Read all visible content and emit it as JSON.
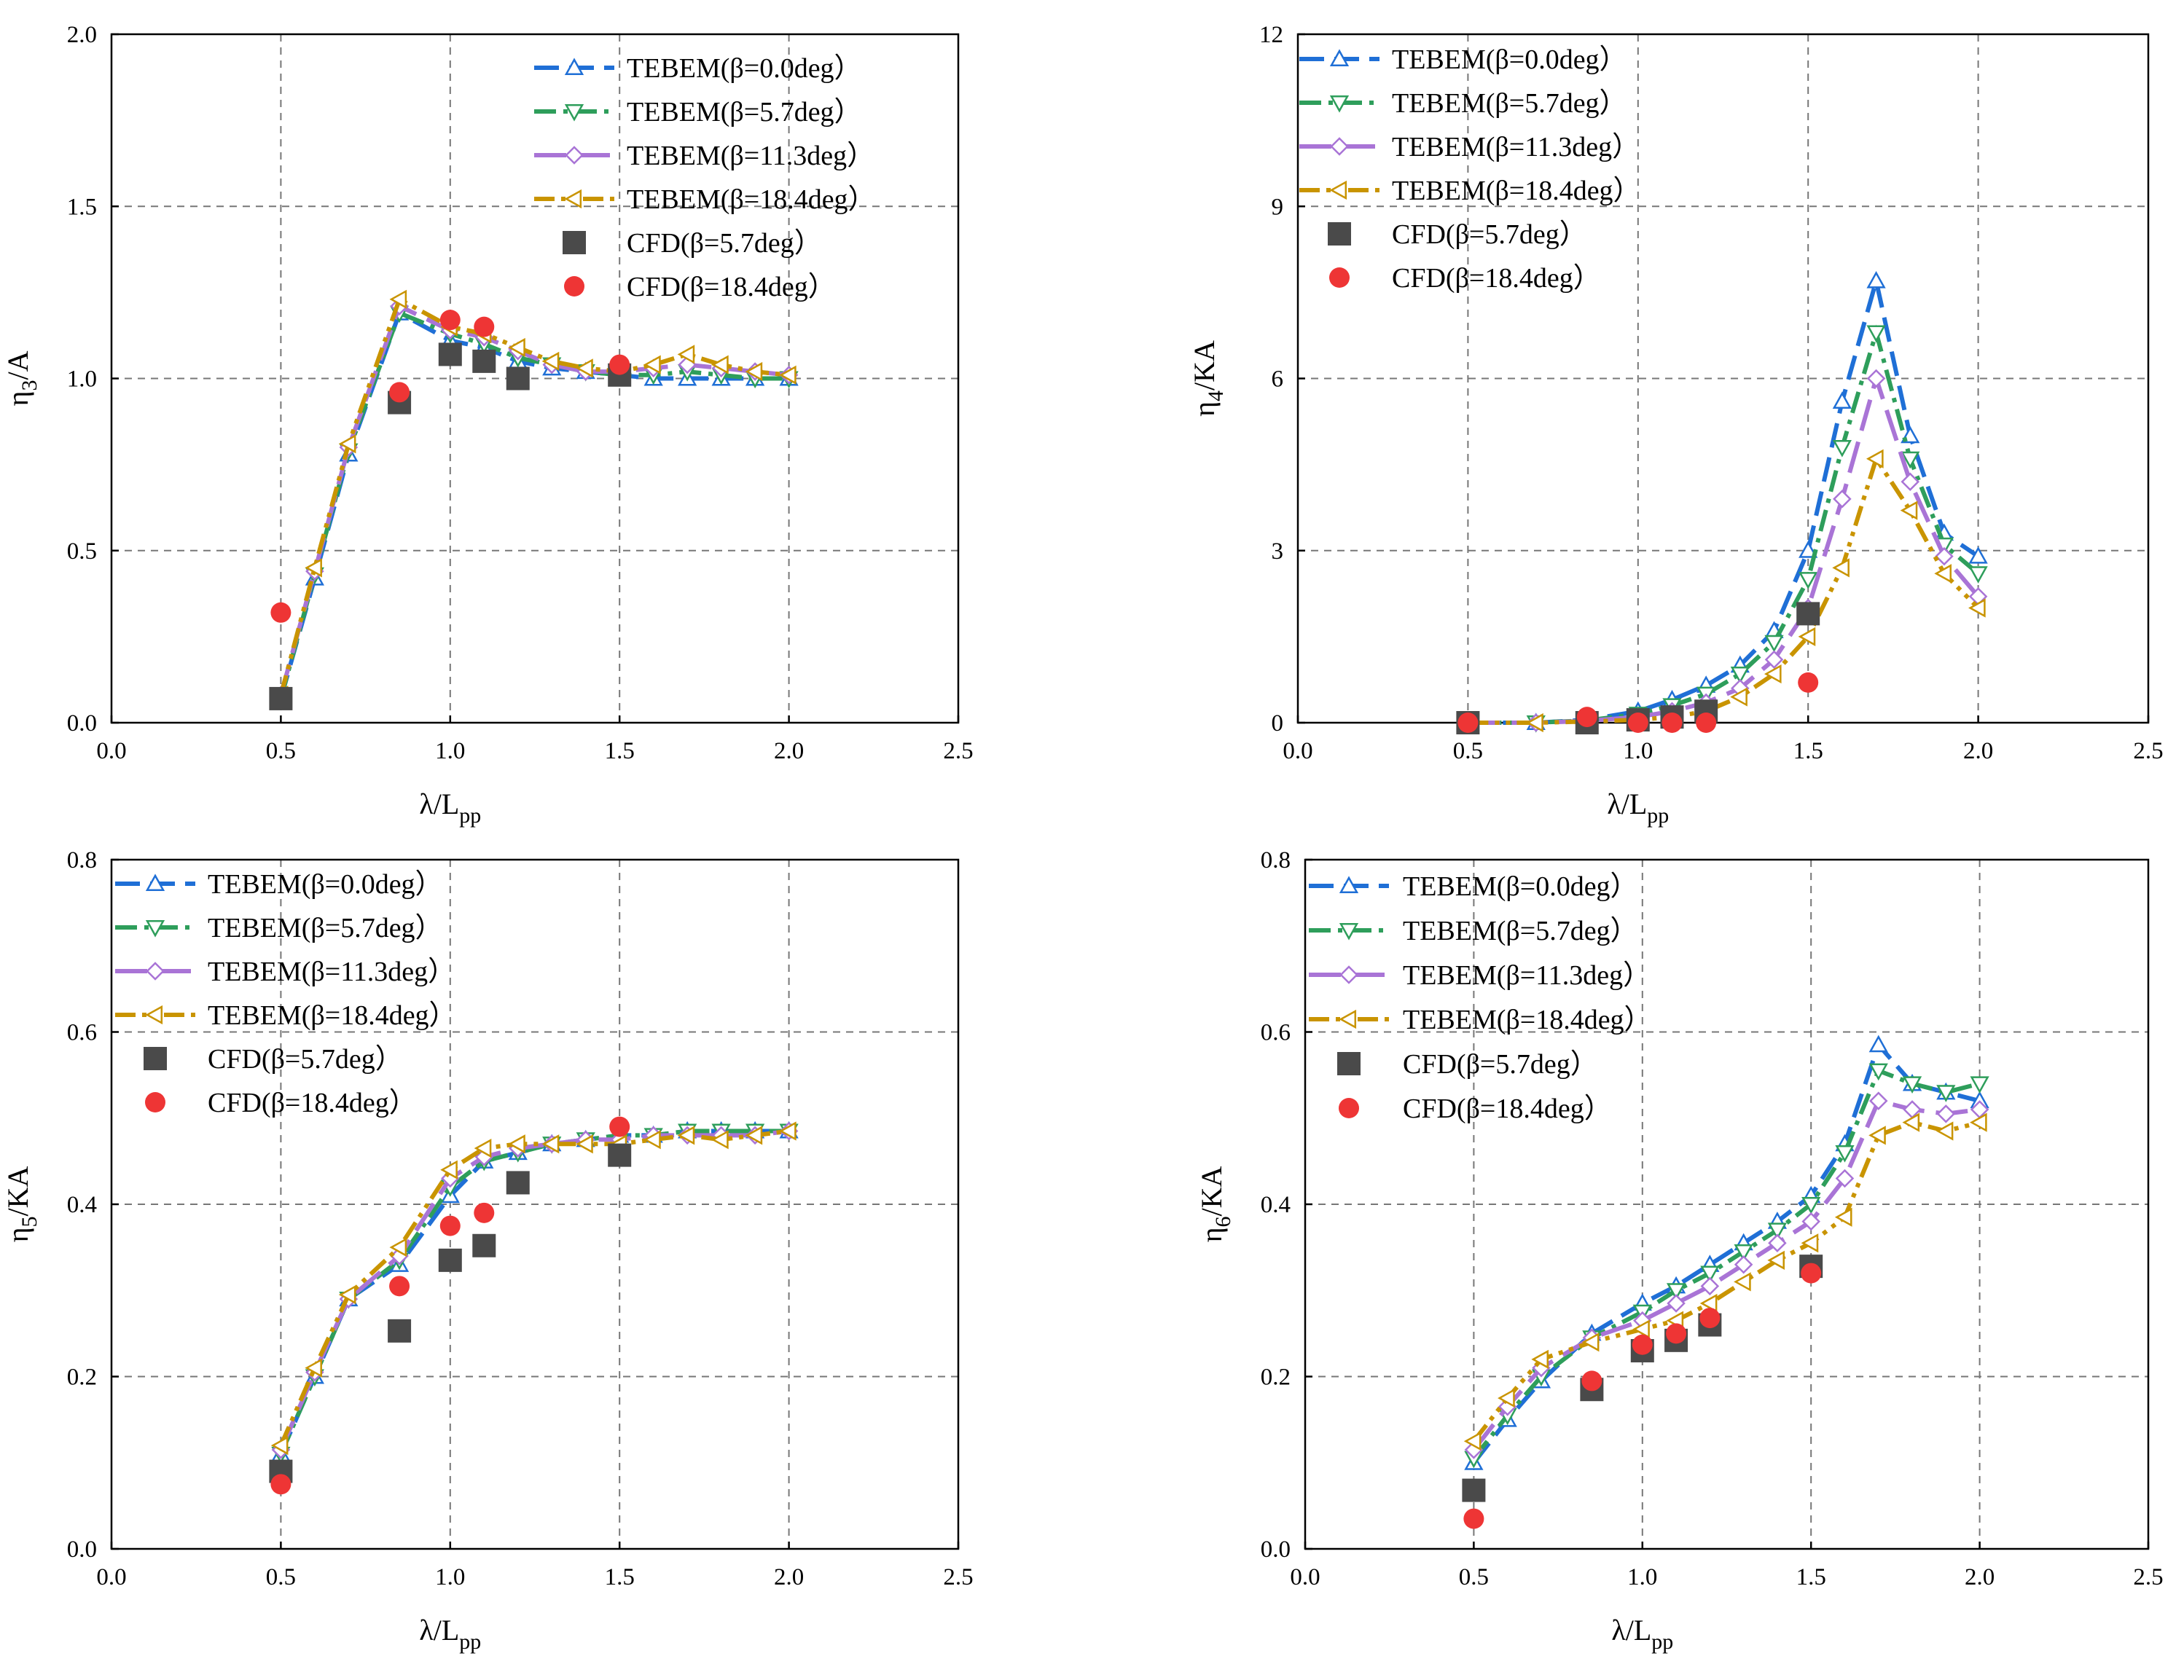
{
  "figure": {
    "legend_labels": [
      "TEBEM(β=0.0deg）",
      "TEBEM(β=5.7deg）",
      "TEBEM(β=11.3deg）",
      "TEBEM(β=18.4deg）",
      "CFD(β=5.7deg）",
      "CFD(β=18.4deg）"
    ]
  },
  "series_styles": [
    {
      "name": "TEBEM(β=0.0deg）",
      "color": "#1f6fd6",
      "marker": "triangle-up",
      "dash": "dash"
    },
    {
      "name": "TEBEM(β=5.7deg）",
      "color": "#2e9e5b",
      "marker": "triangle-down",
      "dash": "dashdot"
    },
    {
      "name": "TEBEM(β=11.3deg）",
      "color": "#a974d6",
      "marker": "diamond",
      "dash": "longdash"
    },
    {
      "name": "TEBEM(β=18.4deg）",
      "color": "#c99400",
      "marker": "triangle-left",
      "dash": "dashdotdot"
    },
    {
      "name": "CFD(β=5.7deg）",
      "color": "#4a4a4a",
      "marker": "square"
    },
    {
      "name": "CFD(β=18.4deg）",
      "color": "#ee3535",
      "marker": "circle"
    }
  ],
  "chart_data": [
    {
      "type": "line",
      "id": "heave",
      "ylabel_base": "η",
      "ylabel_sub": "3",
      "ylabel_rest": "/A",
      "xlabel_base": "λ/L",
      "xlabel_sub": "pp",
      "xlim": [
        0,
        2.5
      ],
      "ylim": [
        0,
        2.0
      ],
      "xticks": [
        0.0,
        0.5,
        1.0,
        1.5,
        2.0,
        2.5
      ],
      "xtick_labels": [
        "0.0",
        "0.5",
        "1.0",
        "1.5",
        "2.0",
        "2.5"
      ],
      "yticks": [
        0.0,
        0.5,
        1.0,
        1.5,
        2.0
      ],
      "ytick_labels": [
        "0.0",
        "0.5",
        "1.0",
        "1.5",
        "2.0"
      ],
      "grid": true,
      "legend_position": "top-right",
      "series": [
        {
          "name": "TEBEM(β=0.0deg）",
          "x": [
            0.5,
            0.6,
            0.7,
            0.85,
            1.0,
            1.1,
            1.2,
            1.3,
            1.4,
            1.5,
            1.6,
            1.7,
            1.8,
            1.9,
            2.0
          ],
          "y": [
            0.07,
            0.42,
            0.78,
            1.19,
            1.11,
            1.09,
            1.05,
            1.03,
            1.02,
            1.01,
            1.0,
            1.0,
            1.0,
            1.0,
            1.0
          ]
        },
        {
          "name": "TEBEM(β=5.7deg）",
          "x": [
            0.5,
            0.6,
            0.7,
            0.85,
            1.0,
            1.1,
            1.2,
            1.3,
            1.4,
            1.5,
            1.6,
            1.7,
            1.8,
            1.9,
            2.0
          ],
          "y": [
            0.07,
            0.43,
            0.79,
            1.19,
            1.13,
            1.1,
            1.06,
            1.04,
            1.02,
            1.01,
            1.01,
            1.02,
            1.01,
            1.0,
            1.0
          ]
        },
        {
          "name": "TEBEM(β=11.3deg）",
          "x": [
            0.5,
            0.6,
            0.7,
            0.85,
            1.0,
            1.1,
            1.2,
            1.3,
            1.4,
            1.5,
            1.6,
            1.7,
            1.8,
            1.9,
            2.0
          ],
          "y": [
            0.08,
            0.44,
            0.8,
            1.21,
            1.14,
            1.12,
            1.08,
            1.04,
            1.02,
            1.02,
            1.03,
            1.04,
            1.03,
            1.02,
            1.01
          ]
        },
        {
          "name": "TEBEM(β=18.4deg）",
          "x": [
            0.5,
            0.6,
            0.7,
            0.85,
            1.0,
            1.1,
            1.2,
            1.3,
            1.4,
            1.5,
            1.6,
            1.7,
            1.8,
            1.9,
            2.0
          ],
          "y": [
            0.08,
            0.45,
            0.81,
            1.23,
            1.15,
            1.13,
            1.09,
            1.05,
            1.03,
            1.02,
            1.04,
            1.07,
            1.04,
            1.02,
            1.01
          ]
        },
        {
          "name": "CFD(β=5.7deg）",
          "x": [
            0.5,
            0.85,
            1.0,
            1.1,
            1.2,
            1.5
          ],
          "y": [
            0.07,
            0.93,
            1.07,
            1.05,
            1.0,
            1.01
          ]
        },
        {
          "name": "CFD(β=18.4deg）",
          "x": [
            0.5,
            0.85,
            1.0,
            1.1,
            1.5
          ],
          "y": [
            0.32,
            0.96,
            1.17,
            1.15,
            1.04
          ]
        }
      ]
    },
    {
      "type": "line",
      "id": "roll",
      "ylabel_base": "η",
      "ylabel_sub": "4",
      "ylabel_rest": "/KA",
      "xlabel_base": "λ/L",
      "xlabel_sub": "pp",
      "xlim": [
        0,
        2.5
      ],
      "ylim": [
        0,
        12
      ],
      "xticks": [
        0.0,
        0.5,
        1.0,
        1.5,
        2.0,
        2.5
      ],
      "xtick_labels": [
        "0.0",
        "0.5",
        "1.0",
        "1.5",
        "2.0",
        "2.5"
      ],
      "yticks": [
        0,
        3,
        6,
        9,
        12
      ],
      "ytick_labels": [
        "0",
        "3",
        "6",
        "9",
        "12"
      ],
      "grid": true,
      "legend_position": "top-left",
      "series": [
        {
          "name": "TEBEM(β=0.0deg）",
          "x": [
            0.5,
            0.7,
            0.85,
            1.0,
            1.1,
            1.2,
            1.3,
            1.4,
            1.5,
            1.6,
            1.7,
            1.8,
            1.9,
            2.0
          ],
          "y": [
            0.0,
            0.0,
            0.05,
            0.2,
            0.4,
            0.65,
            1.0,
            1.6,
            3.0,
            5.6,
            7.7,
            5.0,
            3.3,
            2.9
          ]
        },
        {
          "name": "TEBEM(β=5.7deg）",
          "x": [
            0.5,
            0.7,
            0.85,
            1.0,
            1.1,
            1.2,
            1.3,
            1.4,
            1.5,
            1.6,
            1.7,
            1.8,
            1.9,
            2.0
          ],
          "y": [
            0.0,
            0.0,
            0.04,
            0.15,
            0.3,
            0.5,
            0.85,
            1.4,
            2.5,
            4.8,
            6.8,
            4.6,
            3.1,
            2.6
          ]
        },
        {
          "name": "TEBEM(β=11.3deg）",
          "x": [
            0.5,
            0.7,
            0.85,
            1.0,
            1.1,
            1.2,
            1.3,
            1.4,
            1.5,
            1.6,
            1.7,
            1.8,
            1.9,
            2.0
          ],
          "y": [
            0.0,
            0.0,
            0.03,
            0.1,
            0.2,
            0.35,
            0.6,
            1.1,
            2.0,
            3.9,
            6.0,
            4.2,
            2.9,
            2.2
          ]
        },
        {
          "name": "TEBEM(β=18.4deg）",
          "x": [
            0.5,
            0.7,
            0.85,
            1.0,
            1.1,
            1.2,
            1.3,
            1.4,
            1.5,
            1.6,
            1.7,
            1.8,
            1.9,
            2.0
          ],
          "y": [
            0.0,
            0.0,
            0.02,
            0.05,
            0.1,
            0.2,
            0.45,
            0.85,
            1.5,
            2.7,
            4.6,
            3.7,
            2.6,
            2.0
          ]
        },
        {
          "name": "CFD(β=5.7deg）",
          "x": [
            0.5,
            0.85,
            1.0,
            1.1,
            1.2,
            1.5
          ],
          "y": [
            0.0,
            0.0,
            0.05,
            0.1,
            0.2,
            1.9
          ]
        },
        {
          "name": "CFD(β=18.4deg）",
          "x": [
            0.5,
            0.85,
            1.0,
            1.1,
            1.2,
            1.5
          ],
          "y": [
            0.0,
            0.1,
            0.0,
            0.0,
            0.0,
            0.7
          ]
        }
      ]
    },
    {
      "type": "line",
      "id": "pitch",
      "ylabel_base": "η",
      "ylabel_sub": "5",
      "ylabel_rest": "/KA",
      "xlabel_base": "λ/L",
      "xlabel_sub": "pp",
      "xlim": [
        0,
        2.5
      ],
      "ylim": [
        0,
        0.8
      ],
      "xticks": [
        0.0,
        0.5,
        1.0,
        1.5,
        2.0,
        2.5
      ],
      "xtick_labels": [
        "0.0",
        "0.5",
        "1.0",
        "1.5",
        "2.0",
        "2.5"
      ],
      "yticks": [
        0.0,
        0.2,
        0.4,
        0.6,
        0.8
      ],
      "ytick_labels": [
        "0.0",
        "0.2",
        "0.4",
        "0.6",
        "0.8"
      ],
      "grid": true,
      "legend_position": "top-left",
      "series": [
        {
          "name": "TEBEM(β=0.0deg）",
          "x": [
            0.5,
            0.6,
            0.7,
            0.85,
            1.0,
            1.1,
            1.2,
            1.3,
            1.4,
            1.5,
            1.6,
            1.7,
            1.8,
            1.9,
            2.0
          ],
          "y": [
            0.11,
            0.2,
            0.29,
            0.33,
            0.41,
            0.45,
            0.46,
            0.47,
            0.475,
            0.48,
            0.48,
            0.485,
            0.485,
            0.485,
            0.485
          ]
        },
        {
          "name": "TEBEM(β=5.7deg）",
          "x": [
            0.5,
            0.6,
            0.7,
            0.85,
            1.0,
            1.1,
            1.2,
            1.3,
            1.4,
            1.5,
            1.6,
            1.7,
            1.8,
            1.9,
            2.0
          ],
          "y": [
            0.11,
            0.2,
            0.29,
            0.335,
            0.42,
            0.45,
            0.46,
            0.47,
            0.475,
            0.48,
            0.48,
            0.485,
            0.485,
            0.485,
            0.485
          ]
        },
        {
          "name": "TEBEM(β=11.3deg）",
          "x": [
            0.5,
            0.6,
            0.7,
            0.85,
            1.0,
            1.1,
            1.2,
            1.3,
            1.4,
            1.5,
            1.6,
            1.7,
            1.8,
            1.9,
            2.0
          ],
          "y": [
            0.115,
            0.205,
            0.29,
            0.34,
            0.43,
            0.455,
            0.465,
            0.47,
            0.475,
            0.475,
            0.48,
            0.48,
            0.48,
            0.48,
            0.485
          ]
        },
        {
          "name": "TEBEM(β=18.4deg）",
          "x": [
            0.5,
            0.6,
            0.7,
            0.85,
            1.0,
            1.1,
            1.2,
            1.3,
            1.4,
            1.5,
            1.6,
            1.7,
            1.8,
            1.9,
            2.0
          ],
          "y": [
            0.12,
            0.21,
            0.295,
            0.35,
            0.44,
            0.465,
            0.47,
            0.47,
            0.47,
            0.47,
            0.475,
            0.48,
            0.475,
            0.48,
            0.485
          ]
        },
        {
          "name": "CFD(β=5.7deg）",
          "x": [
            0.5,
            0.85,
            1.0,
            1.1,
            1.2,
            1.5
          ],
          "y": [
            0.09,
            0.253,
            0.335,
            0.352,
            0.425,
            0.457
          ]
        },
        {
          "name": "CFD(β=18.4deg）",
          "x": [
            0.5,
            0.85,
            1.0,
            1.1,
            1.5
          ],
          "y": [
            0.075,
            0.305,
            0.375,
            0.39,
            0.49
          ]
        }
      ]
    },
    {
      "type": "line",
      "id": "yaw",
      "ylabel_base": "η",
      "ylabel_sub": "6",
      "ylabel_rest": "/KA",
      "xlabel_base": "λ/L",
      "xlabel_sub": "pp",
      "xlim": [
        0,
        2.5
      ],
      "ylim": [
        0,
        0.8
      ],
      "xticks": [
        0.0,
        0.5,
        1.0,
        1.5,
        2.0,
        2.5
      ],
      "xtick_labels": [
        "0.0",
        "0.5",
        "1.0",
        "1.5",
        "2.0",
        "2.5"
      ],
      "yticks": [
        0.0,
        0.2,
        0.4,
        0.6,
        0.8
      ],
      "ytick_labels": [
        "0.0",
        "0.2",
        "0.4",
        "0.6",
        "0.8"
      ],
      "grid": true,
      "legend_position": "top-left",
      "series": [
        {
          "name": "TEBEM(β=0.0deg）",
          "x": [
            0.5,
            0.6,
            0.7,
            0.85,
            1.0,
            1.1,
            1.2,
            1.3,
            1.4,
            1.5,
            1.6,
            1.7,
            1.8,
            1.9,
            2.0
          ],
          "y": [
            0.1,
            0.15,
            0.195,
            0.25,
            0.285,
            0.305,
            0.33,
            0.355,
            0.38,
            0.41,
            0.47,
            0.585,
            0.54,
            0.53,
            0.52
          ]
        },
        {
          "name": "TEBEM(β=5.7deg）",
          "x": [
            0.5,
            0.6,
            0.7,
            0.85,
            1.0,
            1.1,
            1.2,
            1.3,
            1.4,
            1.5,
            1.6,
            1.7,
            1.8,
            1.9,
            2.0
          ],
          "y": [
            0.105,
            0.155,
            0.2,
            0.245,
            0.275,
            0.3,
            0.32,
            0.345,
            0.37,
            0.4,
            0.46,
            0.555,
            0.54,
            0.53,
            0.54
          ]
        },
        {
          "name": "TEBEM(β=11.3deg）",
          "x": [
            0.5,
            0.6,
            0.7,
            0.85,
            1.0,
            1.1,
            1.2,
            1.3,
            1.4,
            1.5,
            1.6,
            1.7,
            1.8,
            1.9,
            2.0
          ],
          "y": [
            0.115,
            0.165,
            0.21,
            0.245,
            0.265,
            0.285,
            0.305,
            0.33,
            0.355,
            0.38,
            0.43,
            0.52,
            0.51,
            0.505,
            0.51
          ]
        },
        {
          "name": "TEBEM(β=18.4deg）",
          "x": [
            0.5,
            0.6,
            0.7,
            0.85,
            1.0,
            1.1,
            1.2,
            1.3,
            1.4,
            1.5,
            1.6,
            1.7,
            1.8,
            1.9,
            2.0
          ],
          "y": [
            0.125,
            0.175,
            0.22,
            0.24,
            0.255,
            0.265,
            0.285,
            0.31,
            0.335,
            0.355,
            0.385,
            0.48,
            0.495,
            0.485,
            0.495
          ]
        },
        {
          "name": "CFD(β=5.7deg）",
          "x": [
            0.5,
            0.85,
            1.0,
            1.1,
            1.2,
            1.5
          ],
          "y": [
            0.068,
            0.185,
            0.23,
            0.242,
            0.26,
            0.328
          ]
        },
        {
          "name": "CFD(β=18.4deg）",
          "x": [
            0.5,
            0.85,
            1.0,
            1.1,
            1.2,
            1.5
          ],
          "y": [
            0.035,
            0.195,
            0.237,
            0.25,
            0.268,
            0.32
          ]
        }
      ]
    }
  ]
}
